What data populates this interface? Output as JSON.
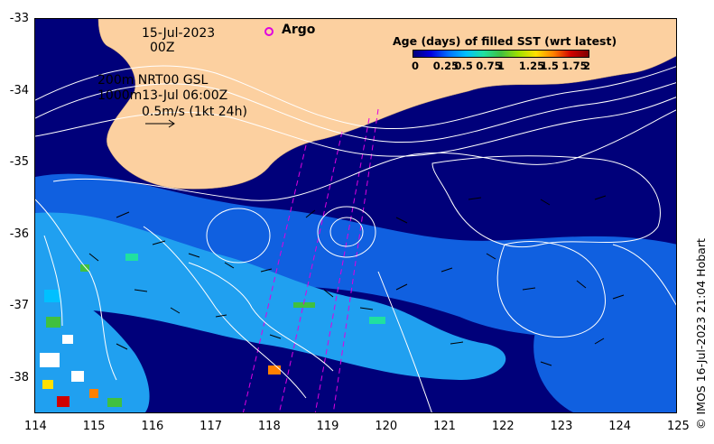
{
  "header": {
    "date": "15-Jul-2023",
    "time": "00Z",
    "depth_line1": "200m  NRT00 GSL",
    "depth_line2": "1000m13-Jul 06:00Z",
    "velocity_scale": "0.5m/s (1kt 24h)"
  },
  "argo": {
    "label": "Argo",
    "color": "#e000e0"
  },
  "colorbar": {
    "title": "Age (days) of filled SST (wrt latest)",
    "tick_labels": [
      "0",
      "0.25",
      "0.5",
      "0.75",
      "1",
      "1.25",
      "1.5",
      "1.75",
      "2"
    ],
    "colors": [
      "#00007a",
      "#0000e0",
      "#0070ff",
      "#00c0ff",
      "#20e0a0",
      "#40c040",
      "#a0e000",
      "#ffe000",
      "#ff8000",
      "#d00000",
      "#800000"
    ]
  },
  "axes": {
    "x_ticks": [
      "114",
      "115",
      "116",
      "117",
      "118",
      "119",
      "120",
      "121",
      "122",
      "123",
      "124",
      "125"
    ],
    "y_ticks": [
      "-33",
      "-34",
      "-35",
      "-36",
      "-37",
      "-38"
    ]
  },
  "credit": "© IMOS 16-Jul-2023 21:04 Hobart",
  "colors": {
    "land": "#fcd0a0",
    "deep_ocean": "#00007a",
    "mid_ocean": "#1060e0",
    "shelf_ocean": "#20a0f0",
    "contour": "#ffffff"
  }
}
